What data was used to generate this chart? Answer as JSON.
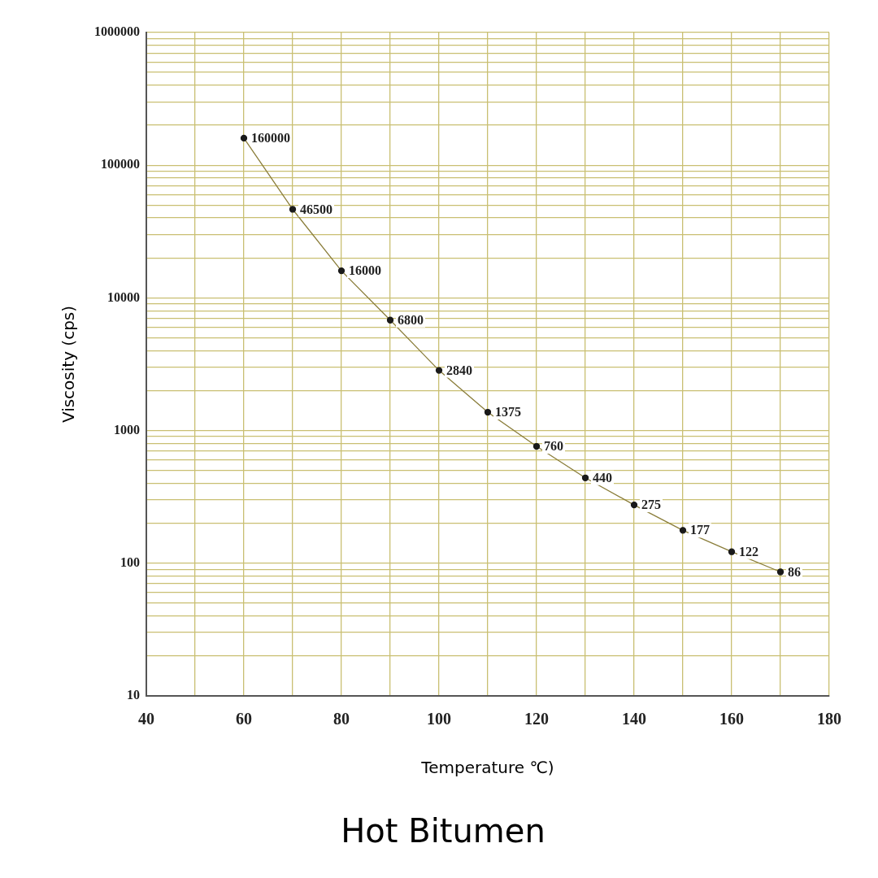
{
  "chart_data": {
    "type": "line",
    "title": "Hot Bitumen",
    "xlabel": "Temperature ℃)",
    "ylabel": "Viscosity (cps)",
    "x": [
      60,
      70,
      80,
      90,
      100,
      110,
      120,
      130,
      140,
      150,
      160,
      170
    ],
    "series": [
      {
        "color": "#8a7d3a",
        "values": [
          160000,
          46500,
          16000,
          6800,
          2840,
          1375,
          760,
          440,
          275,
          177,
          122,
          86
        ]
      }
    ],
    "data_labels": true,
    "marker": "circle",
    "line_style": "solid",
    "log": "y",
    "grid": true,
    "legend": false,
    "xlim": [
      40,
      180
    ],
    "xticks": [
      40,
      {
        "value": 50,
        "label": null
      },
      60,
      {
        "value": 70,
        "label": null
      },
      80,
      {
        "value": 90,
        "label": null
      },
      100,
      {
        "value": 110,
        "label": null
      },
      120,
      {
        "value": 130,
        "label": null
      },
      140,
      {
        "value": 150,
        "label": null
      },
      160,
      {
        "value": 170,
        "label": null
      },
      180
    ],
    "ylim": [
      10,
      1000000
    ],
    "yticks": [
      10,
      {
        "value": 20,
        "label": null
      },
      {
        "value": 30,
        "label": null
      },
      {
        "value": 40,
        "label": null
      },
      {
        "value": 50,
        "label": null
      },
      {
        "value": 60,
        "label": null
      },
      {
        "value": 70,
        "label": null
      },
      {
        "value": 80,
        "label": null
      },
      {
        "value": 90,
        "label": null
      },
      100,
      {
        "value": 200,
        "label": null
      },
      {
        "value": 300,
        "label": null
      },
      {
        "value": 400,
        "label": null
      },
      {
        "value": 500,
        "label": null
      },
      {
        "value": 600,
        "label": null
      },
      {
        "value": 700,
        "label": null
      },
      {
        "value": 800,
        "label": null
      },
      {
        "value": 900,
        "label": null
      },
      1000,
      {
        "value": 2000,
        "label": null
      },
      {
        "value": 3000,
        "label": null
      },
      {
        "value": 4000,
        "label": null
      },
      {
        "value": 5000,
        "label": null
      },
      {
        "value": 6000,
        "label": null
      },
      {
        "value": 7000,
        "label": null
      },
      {
        "value": 8000,
        "label": null
      },
      {
        "value": 9000,
        "label": null
      },
      10000,
      {
        "value": 20000,
        "label": null
      },
      {
        "value": 30000,
        "label": null
      },
      {
        "value": 40000,
        "label": null
      },
      {
        "value": 50000,
        "label": null
      },
      {
        "value": 60000,
        "label": null
      },
      {
        "value": 70000,
        "label": null
      },
      {
        "value": 80000,
        "label": null
      },
      {
        "value": 90000,
        "label": null
      },
      100000,
      {
        "value": 200000,
        "label": null
      },
      {
        "value": 300000,
        "label": null
      },
      {
        "value": 400000,
        "label": null
      },
      {
        "value": 500000,
        "label": null
      },
      {
        "value": 600000,
        "label": null
      },
      {
        "value": 700000,
        "label": null
      },
      {
        "value": 800000,
        "label": null
      },
      {
        "value": 900000,
        "label": null
      },
      1000000
    ]
  }
}
